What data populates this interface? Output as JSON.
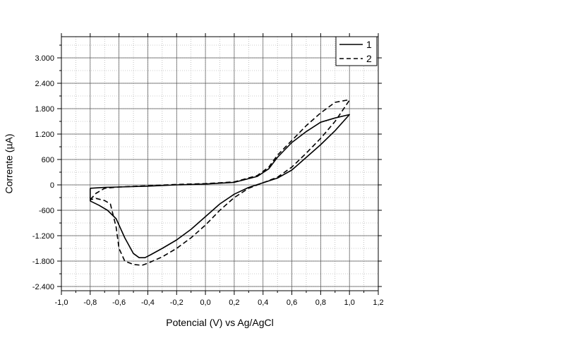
{
  "chart_data": {
    "type": "line",
    "xlabel": "Potencial (V) vs Ag/AgCl",
    "ylabel": "Corrente (µA)",
    "xlim": [
      -1.0,
      1.2
    ],
    "ylim": [
      -2500,
      3500
    ],
    "xticks": [
      -1.0,
      -0.8,
      -0.6,
      -0.4,
      -0.2,
      0.0,
      0.2,
      0.4,
      0.6,
      0.8,
      1.0,
      1.2
    ],
    "xtick_labels": [
      "-1,0",
      "-0,8",
      "-0,6",
      "-0,4",
      "-0,2",
      "0,0",
      "0,2",
      "0,4",
      "0,6",
      "0,8",
      "1,0",
      "1,2"
    ],
    "yticks": [
      -2400,
      -1800,
      -1200,
      -600,
      0,
      600,
      1200,
      1800,
      2400,
      3000
    ],
    "ytick_labels": [
      "-2.400",
      "-1.800",
      "-1.200",
      "-600",
      "0",
      "600",
      "1.200",
      "1.800",
      "2.400",
      "3.000"
    ],
    "grid": true,
    "legend_position": "top-right",
    "series": [
      {
        "name": "1",
        "style": "solid",
        "color": "#000000",
        "x": [
          -0.8,
          -0.7,
          -0.6,
          -0.4,
          -0.2,
          0.0,
          0.2,
          0.36,
          0.44,
          0.5,
          0.6,
          0.7,
          0.8,
          0.9,
          1.0,
          0.9,
          0.8,
          0.7,
          0.6,
          0.5,
          0.4,
          0.3,
          0.2,
          0.1,
          0.0,
          -0.1,
          -0.2,
          -0.3,
          -0.38,
          -0.42,
          -0.46,
          -0.5,
          -0.56,
          -0.62,
          -0.68,
          -0.74,
          -0.8,
          -0.8
        ],
        "y": [
          -80,
          -60,
          -50,
          -30,
          0,
          20,
          60,
          200,
          380,
          650,
          1000,
          1260,
          1480,
          1580,
          1660,
          1280,
          950,
          650,
          350,
          160,
          50,
          -60,
          -220,
          -450,
          -750,
          -1050,
          -1300,
          -1500,
          -1650,
          -1720,
          -1720,
          -1620,
          -1250,
          -800,
          -600,
          -480,
          -380,
          -80
        ]
      },
      {
        "name": "2",
        "style": "dashed",
        "color": "#000000",
        "x": [
          -0.8,
          -0.76,
          -0.7,
          -0.6,
          -0.4,
          -0.2,
          0.0,
          0.2,
          0.36,
          0.44,
          0.5,
          0.6,
          0.7,
          0.8,
          0.9,
          0.98,
          1.0,
          0.9,
          0.8,
          0.7,
          0.6,
          0.5,
          0.4,
          0.3,
          0.2,
          0.1,
          0.0,
          -0.1,
          -0.2,
          -0.3,
          -0.4,
          -0.44,
          -0.5,
          -0.56,
          -0.6,
          -0.62,
          -0.66,
          -0.7,
          -0.76,
          -0.8
        ],
        "y": [
          -350,
          -200,
          -80,
          -50,
          -20,
          10,
          30,
          70,
          220,
          420,
          700,
          1050,
          1400,
          1700,
          1950,
          2000,
          2000,
          1500,
          1100,
          750,
          420,
          180,
          50,
          -80,
          -300,
          -600,
          -950,
          -1250,
          -1500,
          -1700,
          -1850,
          -1900,
          -1880,
          -1800,
          -1500,
          -1000,
          -450,
          -370,
          -320,
          -350
        ]
      }
    ]
  }
}
